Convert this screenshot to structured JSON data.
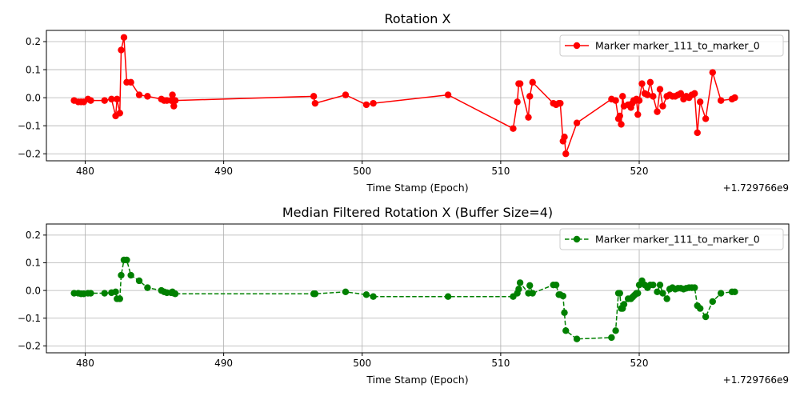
{
  "chart_data": [
    {
      "type": "line",
      "title": "Rotation X",
      "xlabel": "Time Stamp (Epoch)",
      "x_offset_label": "+1.729766e9",
      "ylabel": "",
      "xlim": [
        477.2,
        530.8
      ],
      "ylim": [
        -0.225,
        0.24
      ],
      "xticks": [
        480,
        490,
        500,
        510,
        520
      ],
      "yticks": [
        -0.2,
        -0.1,
        0.0,
        0.1,
        0.2
      ],
      "xtick_labels": [
        "480",
        "490",
        "500",
        "510",
        "520"
      ],
      "ytick_labels": [
        "−0.2",
        "−0.1",
        "0.0",
        "0.1",
        "0.2"
      ],
      "grid": true,
      "legend_position": "top-right",
      "series": [
        {
          "name": "Marker marker_111_to_marker_0",
          "color": "#ff0000",
          "line_style": "solid",
          "marker": "circle",
          "x": [
            479.2,
            479.5,
            479.7,
            479.9,
            480.2,
            480.4,
            481.4,
            481.9,
            482.2,
            482.3,
            482.5,
            482.6,
            482.8,
            483.0,
            483.3,
            483.9,
            484.5,
            485.5,
            485.7,
            485.9,
            486.2,
            486.3,
            486.4,
            486.5,
            496.5,
            496.6,
            498.8,
            500.3,
            500.8,
            506.2,
            510.9,
            511.2,
            511.3,
            511.4,
            512.0,
            512.1,
            512.3,
            513.8,
            514.0,
            514.2,
            514.3,
            514.5,
            514.6,
            514.7,
            515.5,
            518.0,
            518.3,
            518.5,
            518.6,
            518.7,
            518.8,
            518.9,
            519.2,
            519.4,
            519.5,
            519.6,
            519.7,
            519.8,
            519.9,
            520.0,
            520.2,
            520.4,
            520.6,
            520.8,
            521.0,
            521.3,
            521.5,
            521.7,
            522.0,
            522.2,
            522.4,
            522.6,
            522.8,
            523.0,
            523.2,
            523.4,
            523.6,
            523.8,
            524.0,
            524.2,
            524.4,
            524.8,
            525.3,
            525.9,
            526.7,
            526.9
          ],
          "y": [
            -0.01,
            -0.015,
            -0.015,
            -0.015,
            -0.005,
            -0.01,
            -0.01,
            -0.005,
            -0.065,
            -0.005,
            -0.055,
            0.17,
            0.215,
            0.055,
            0.055,
            0.01,
            0.005,
            -0.005,
            -0.01,
            -0.01,
            -0.01,
            0.01,
            -0.03,
            -0.01,
            0.005,
            -0.02,
            0.01,
            -0.025,
            -0.02,
            0.01,
            -0.11,
            -0.015,
            0.05,
            0.05,
            -0.07,
            0.005,
            0.055,
            -0.02,
            -0.025,
            -0.02,
            -0.02,
            -0.155,
            -0.14,
            -0.2,
            -0.09,
            -0.005,
            -0.01,
            -0.075,
            -0.065,
            -0.095,
            0.005,
            -0.03,
            -0.025,
            -0.035,
            -0.02,
            -0.01,
            -0.01,
            -0.005,
            -0.06,
            -0.01,
            0.05,
            0.015,
            0.01,
            0.055,
            0.005,
            -0.05,
            0.03,
            -0.03,
            0.005,
            0.01,
            0.005,
            0.005,
            0.01,
            0.015,
            -0.005,
            0.005,
            0.0,
            0.01,
            0.015,
            -0.125,
            -0.015,
            -0.075,
            0.09,
            -0.01,
            -0.005,
            0.0
          ]
        }
      ]
    },
    {
      "type": "line",
      "title": "Median Filtered Rotation X (Buffer Size=4)",
      "xlabel": "Time Stamp (Epoch)",
      "x_offset_label": "+1.729766e9",
      "ylabel": "",
      "xlim": [
        477.2,
        530.8
      ],
      "ylim": [
        -0.225,
        0.24
      ],
      "xticks": [
        480,
        490,
        500,
        510,
        520
      ],
      "yticks": [
        -0.2,
        -0.1,
        0.0,
        0.1,
        0.2
      ],
      "xtick_labels": [
        "480",
        "490",
        "500",
        "510",
        "520"
      ],
      "ytick_labels": [
        "−0.2",
        "−0.1",
        "0.0",
        "0.1",
        "0.2"
      ],
      "grid": true,
      "legend_position": "top-right",
      "series": [
        {
          "name": "Marker marker_111_to_marker_0",
          "color": "#008000",
          "line_style": "dashed",
          "marker": "circle",
          "x": [
            479.2,
            479.5,
            479.7,
            479.9,
            480.2,
            480.4,
            481.4,
            481.9,
            482.2,
            482.3,
            482.5,
            482.6,
            482.8,
            483.0,
            483.3,
            483.9,
            484.5,
            485.5,
            485.7,
            485.9,
            486.2,
            486.3,
            486.4,
            486.5,
            496.5,
            496.6,
            498.8,
            500.3,
            500.8,
            506.2,
            510.9,
            511.2,
            511.3,
            511.4,
            512.0,
            512.1,
            512.3,
            513.8,
            514.0,
            514.2,
            514.3,
            514.5,
            514.6,
            514.7,
            515.5,
            518.0,
            518.3,
            518.5,
            518.6,
            518.7,
            518.8,
            518.9,
            519.2,
            519.4,
            519.5,
            519.6,
            519.7,
            519.8,
            519.9,
            520.0,
            520.2,
            520.4,
            520.6,
            520.8,
            521.0,
            521.3,
            521.5,
            521.7,
            522.0,
            522.2,
            522.4,
            522.6,
            522.8,
            523.0,
            523.2,
            523.4,
            523.6,
            523.8,
            524.0,
            524.2,
            524.4,
            524.8,
            525.3,
            525.9,
            526.7,
            526.9
          ],
          "y": [
            -0.01,
            -0.01,
            -0.012,
            -0.012,
            -0.01,
            -0.01,
            -0.01,
            -0.008,
            -0.005,
            -0.03,
            -0.03,
            0.055,
            0.11,
            0.11,
            0.055,
            0.035,
            0.01,
            0.0,
            -0.005,
            -0.008,
            -0.008,
            -0.005,
            -0.01,
            -0.012,
            -0.012,
            -0.012,
            -0.005,
            -0.015,
            -0.022,
            -0.022,
            -0.022,
            -0.01,
            0.005,
            0.028,
            -0.01,
            0.018,
            -0.01,
            0.02,
            0.02,
            -0.015,
            -0.015,
            -0.02,
            -0.08,
            -0.145,
            -0.175,
            -0.17,
            -0.145,
            -0.01,
            -0.01,
            -0.065,
            -0.065,
            -0.05,
            -0.03,
            -0.03,
            -0.025,
            -0.02,
            -0.015,
            -0.01,
            -0.01,
            0.02,
            0.035,
            0.02,
            0.01,
            0.02,
            0.02,
            -0.005,
            0.02,
            -0.01,
            -0.03,
            0.005,
            0.01,
            0.005,
            0.008,
            0.008,
            0.005,
            0.008,
            0.01,
            0.01,
            0.01,
            -0.055,
            -0.065,
            -0.095,
            -0.04,
            -0.01,
            -0.005,
            -0.005
          ]
        }
      ]
    }
  ]
}
